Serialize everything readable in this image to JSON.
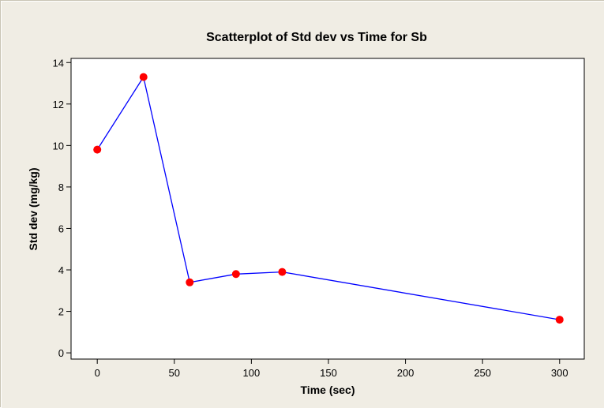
{
  "chart_data": {
    "type": "scatter",
    "connected": true,
    "title": "Scatterplot of Std dev vs Time for Sb",
    "xlabel": "Time (sec)",
    "ylabel": "Std dev (mg/kg)",
    "xlim": [
      -17,
      316
    ],
    "ylim": [
      -0.3,
      14.2
    ],
    "xticks": [
      0,
      50,
      100,
      150,
      200,
      250,
      300
    ],
    "yticks": [
      0,
      2,
      4,
      6,
      8,
      10,
      12,
      14
    ],
    "grid": false,
    "series": [
      {
        "x": [
          0,
          30,
          60,
          90,
          120,
          300
        ],
        "y": [
          9.8,
          13.3,
          3.4,
          3.8,
          3.9,
          1.6
        ],
        "line_color": "#0000ff",
        "marker_color": "#ff0000"
      }
    ],
    "colors": {
      "background": "#f0ede4",
      "plot_area": "#ffffff",
      "line": "#0000ff",
      "marker": "#ff0000"
    }
  }
}
